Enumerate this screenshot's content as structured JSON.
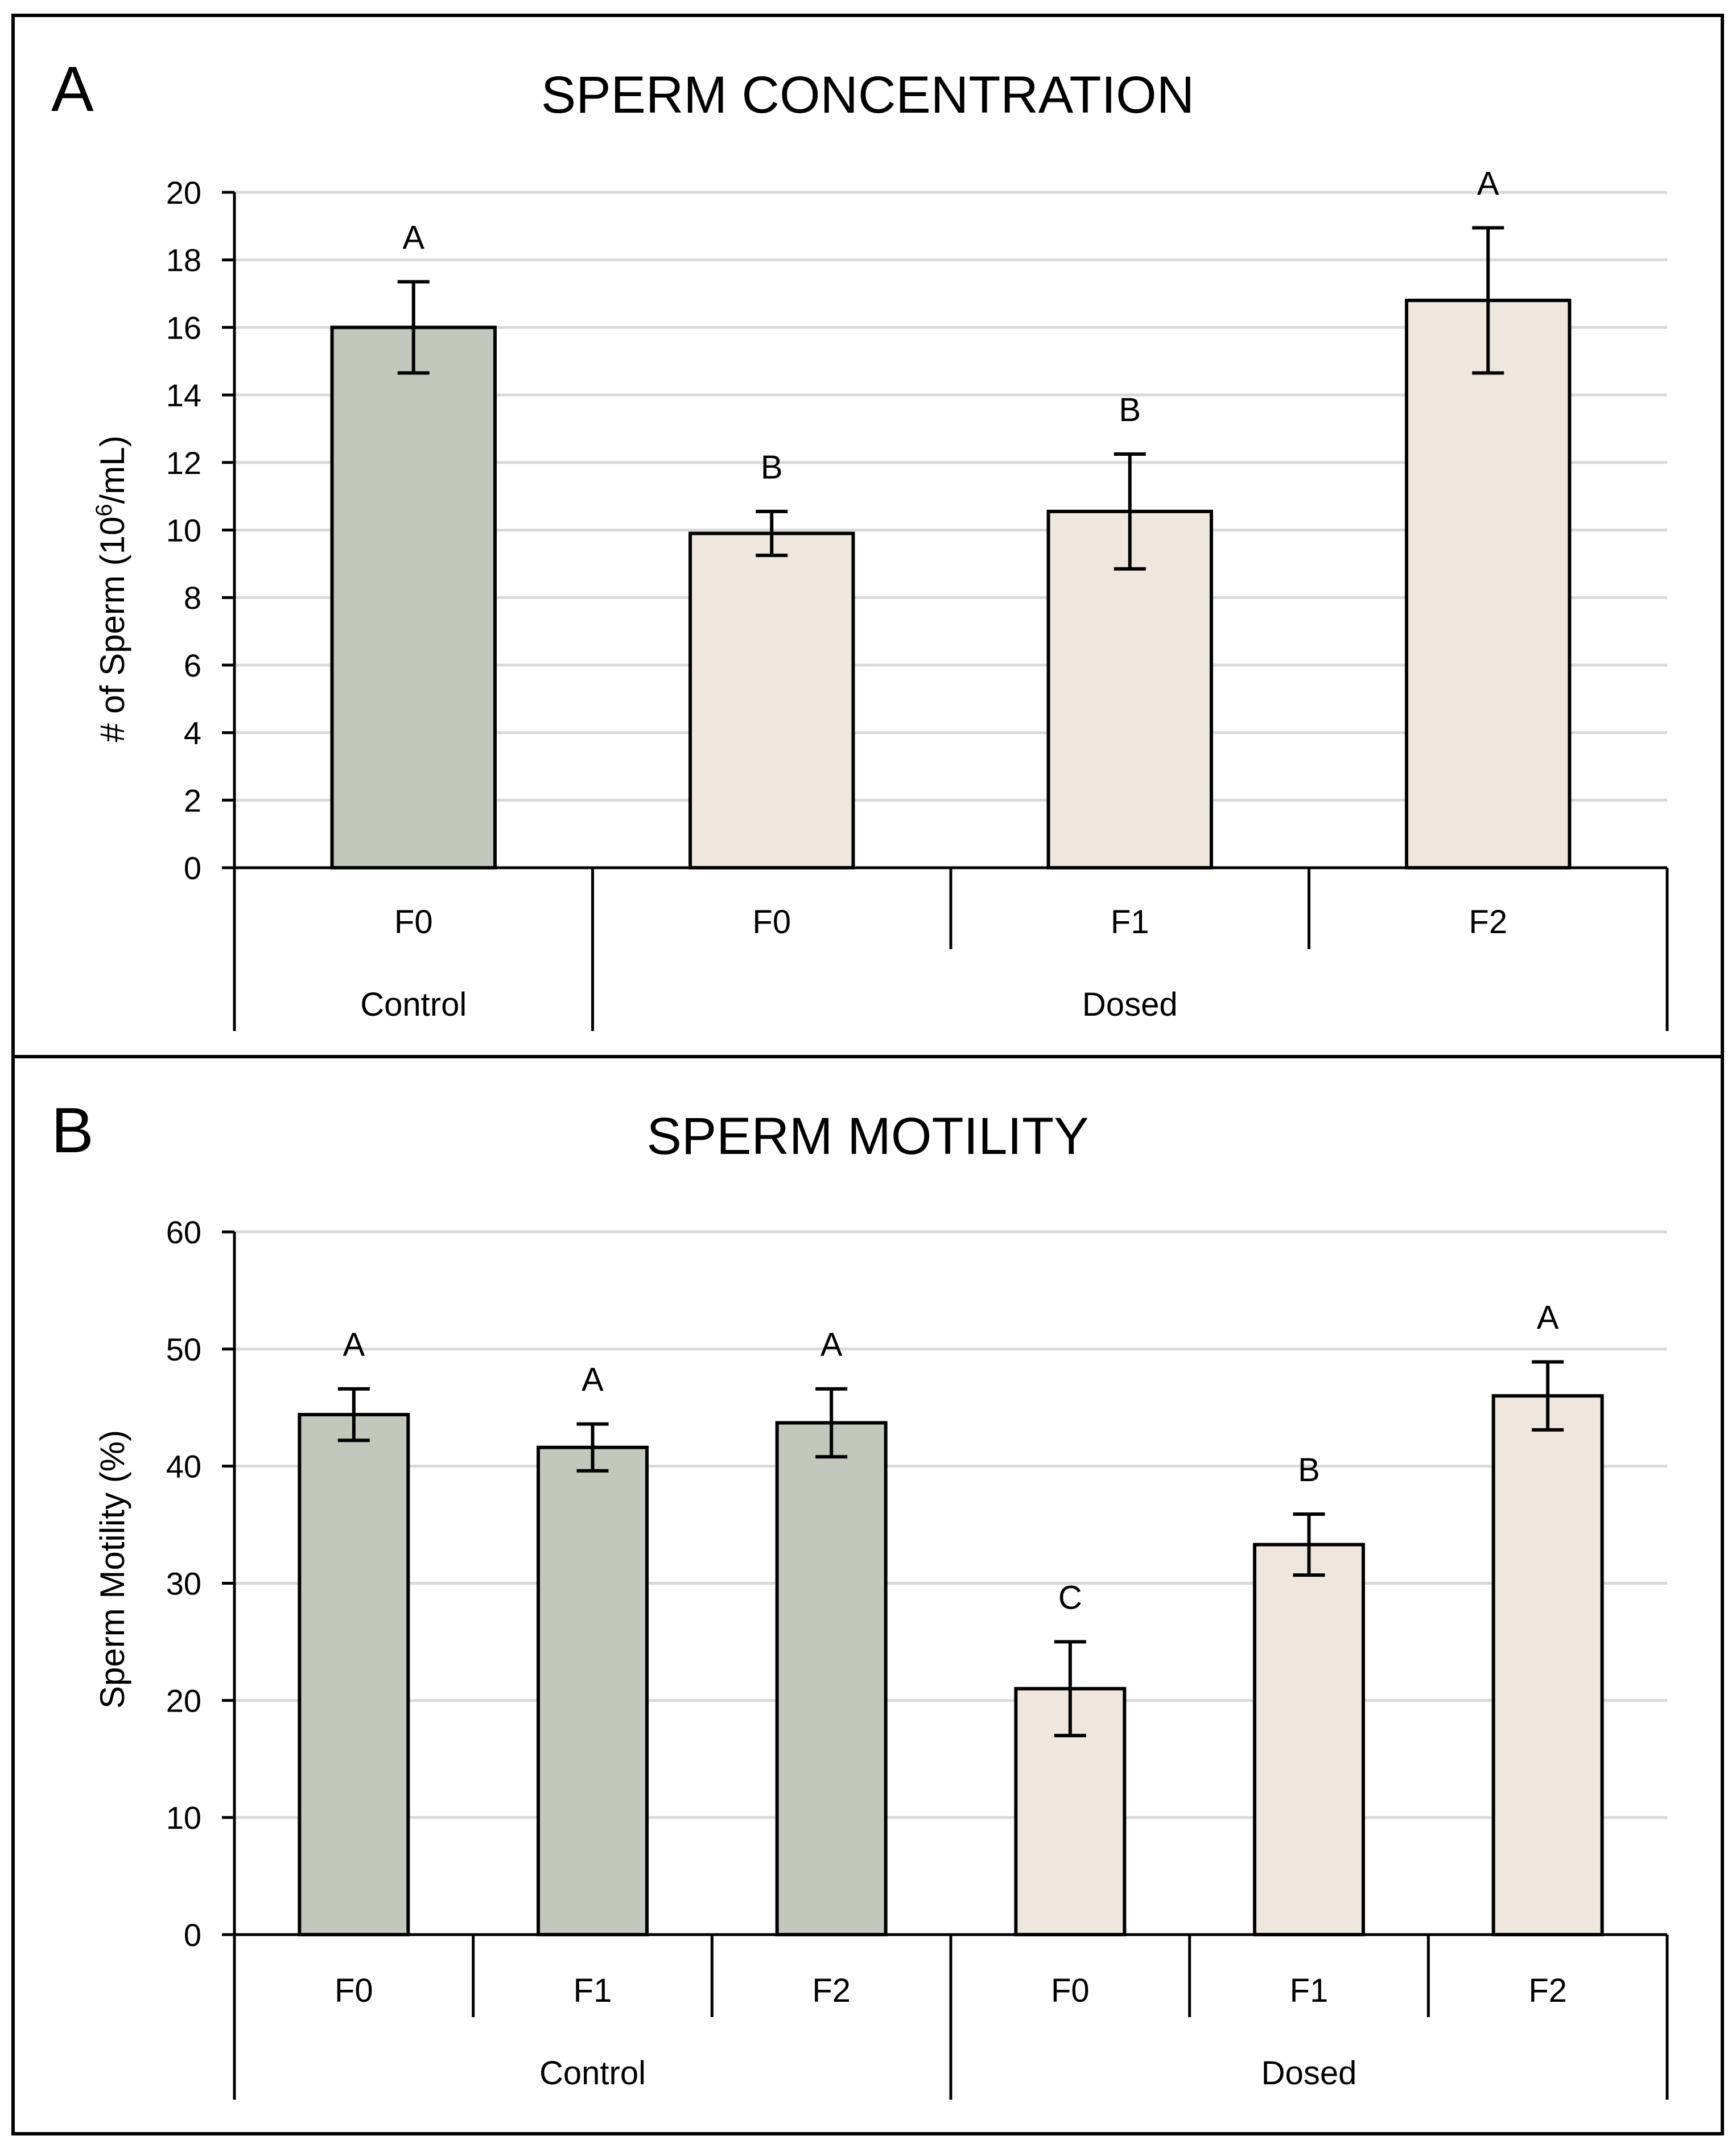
{
  "chart_data": [
    {
      "panel_label": "A",
      "type": "bar",
      "title": "SPERM CONCENTRATION",
      "ylabel": "# of Sperm (10",
      "ylabel_sup": "6",
      "ylabel_end": "/mL)",
      "xlabel": "",
      "ylim": [
        0,
        20
      ],
      "ytick_step": 2,
      "yticks": [
        "0",
        "2",
        "4",
        "6",
        "8",
        "10",
        "12",
        "14",
        "16",
        "18",
        "20"
      ],
      "grid": true,
      "categories": [
        "F0",
        "F0",
        "F1",
        "F2"
      ],
      "groups": [
        {
          "label": "Control",
          "count": 1
        },
        {
          "label": "Dosed",
          "count": 3
        }
      ],
      "series": [
        {
          "name": "Sperm concentration",
          "values": [
            16.0,
            9.9,
            10.55,
            16.8
          ],
          "errors": [
            1.35,
            0.65,
            1.7,
            2.15
          ],
          "letters": [
            "A",
            "B",
            "B",
            "A"
          ],
          "colors": [
            "#c2c9bc",
            "#efe6dd",
            "#efe6dd",
            "#efe6dd"
          ]
        }
      ]
    },
    {
      "panel_label": "B",
      "type": "bar",
      "title": "SPERM MOTILITY",
      "ylabel": "Sperm Motility (%)",
      "xlabel": "",
      "ylim": [
        0,
        60
      ],
      "ytick_step": 10,
      "yticks": [
        "0",
        "10",
        "20",
        "30",
        "40",
        "50",
        "60"
      ],
      "grid": true,
      "categories": [
        "F0",
        "F1",
        "F2",
        "F0",
        "F1",
        "F2"
      ],
      "groups": [
        {
          "label": "Control",
          "count": 3
        },
        {
          "label": "Dosed",
          "count": 3
        }
      ],
      "series": [
        {
          "name": "Sperm motility",
          "values": [
            44.4,
            41.6,
            43.7,
            21.0,
            33.3,
            46.0
          ],
          "errors": [
            2.2,
            2.0,
            2.9,
            4.0,
            2.6,
            2.9
          ],
          "letters": [
            "A",
            "A",
            "A",
            "C",
            "B",
            "A"
          ],
          "colors": [
            "#c2c9bc",
            "#c2c9bc",
            "#c2c9bc",
            "#efe6dd",
            "#efe6dd",
            "#efe6dd"
          ]
        }
      ]
    }
  ]
}
